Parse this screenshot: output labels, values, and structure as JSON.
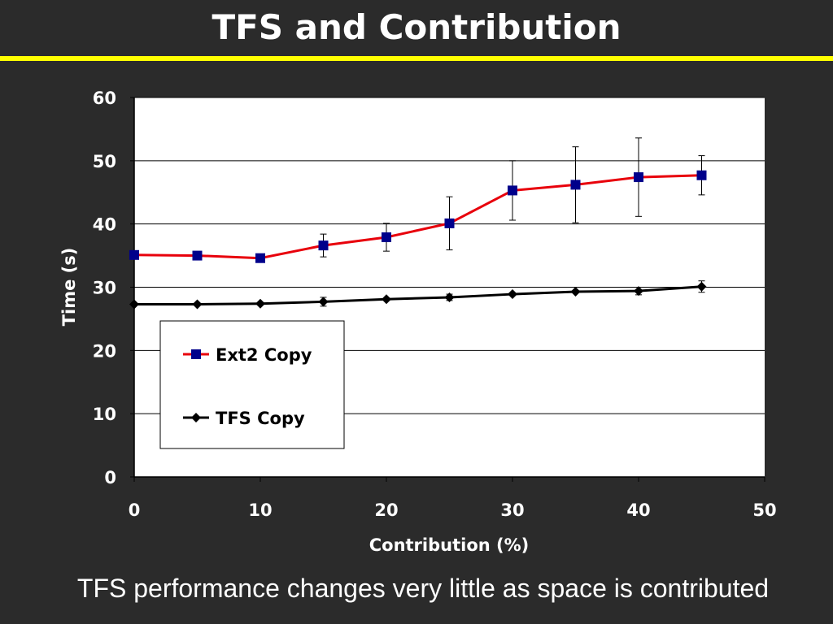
{
  "slide": {
    "title": "TFS and Contribution",
    "caption": "TFS performance changes very little as space is contributed",
    "background_color": "#2b2b2b",
    "accent_rule_color": "#ffff00"
  },
  "chart_data": {
    "type": "line",
    "xlabel": "Contribution (%)",
    "ylabel": "Time (s)",
    "xlim": [
      0,
      50
    ],
    "ylim": [
      0,
      60
    ],
    "xticks": [
      "0",
      "10",
      "20",
      "30",
      "40",
      "50"
    ],
    "yticks": [
      "0",
      "10",
      "20",
      "30",
      "40",
      "50",
      "60"
    ],
    "grid": "horizontal",
    "legend_position": "lower-left",
    "series": [
      {
        "name": "Ext2 Copy",
        "line_color": "#e8000b",
        "marker_color": "#00008b",
        "marker": "square",
        "x": [
          0,
          5,
          10,
          15,
          20,
          25,
          30,
          35,
          40,
          45
        ],
        "y": [
          35.1,
          35.0,
          34.6,
          36.6,
          37.9,
          40.1,
          45.3,
          46.2,
          47.4,
          47.7
        ],
        "error": [
          null,
          null,
          null,
          1.8,
          2.2,
          4.2,
          4.7,
          6.0,
          6.2,
          3.1
        ]
      },
      {
        "name": "TFS Copy",
        "line_color": "#000000",
        "marker_color": "#000000",
        "marker": "diamond",
        "x": [
          0,
          5,
          10,
          15,
          20,
          25,
          30,
          35,
          40,
          45
        ],
        "y": [
          27.3,
          27.3,
          27.4,
          27.7,
          28.1,
          28.4,
          28.9,
          29.3,
          29.4,
          30.1
        ],
        "error": [
          null,
          null,
          null,
          0.7,
          null,
          0.5,
          null,
          null,
          0.6,
          0.9
        ]
      }
    ]
  }
}
